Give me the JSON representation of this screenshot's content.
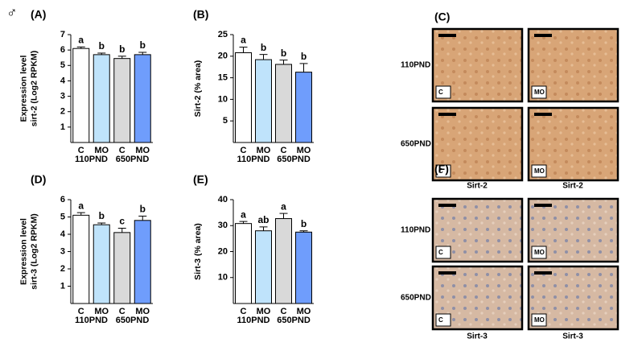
{
  "symbol": "♂",
  "chart_data": [
    {
      "type": "bar",
      "panel": "(A)",
      "ylabel": [
        "Expression level",
        "sirt-2 (Log2 RPKM)"
      ],
      "categories": [
        "C",
        "MO",
        "C",
        "MO"
      ],
      "groups": [
        "110PND",
        "650PND"
      ],
      "values": [
        6.1,
        5.7,
        5.45,
        5.7
      ],
      "errors": [
        0.1,
        0.1,
        0.15,
        0.15
      ],
      "letters": [
        "a",
        "b",
        "b",
        "b"
      ],
      "colors": [
        "#ffffff",
        "#bfe3fb",
        "#d9d9d9",
        "#6f9dfc"
      ],
      "ylim": [
        0,
        7
      ],
      "yticks": [
        1,
        2,
        3,
        4,
        5,
        6,
        7
      ]
    },
    {
      "type": "bar",
      "panel": "(B)",
      "ylabel": [
        "Sirt-2 (% area)"
      ],
      "categories": [
        "C",
        "MO",
        "C",
        "MO"
      ],
      "groups": [
        "110PND",
        "650PND"
      ],
      "values": [
        20.8,
        19.2,
        18.1,
        16.3
      ],
      "errors": [
        1.3,
        1.2,
        1.0,
        2.0
      ],
      "letters": [
        "a",
        "b",
        "b",
        "b"
      ],
      "colors": [
        "#ffffff",
        "#bfe3fb",
        "#d9d9d9",
        "#6f9dfc"
      ],
      "ylim": [
        0,
        25
      ],
      "yticks": [
        5,
        10,
        15,
        20,
        25
      ]
    },
    {
      "type": "bar",
      "panel": "(D)",
      "ylabel": [
        "Expression level",
        "sirt-3 (Log2 RPKM)"
      ],
      "categories": [
        "C",
        "MO",
        "C",
        "MO"
      ],
      "groups": [
        "110PND",
        "650PND"
      ],
      "values": [
        5.1,
        4.55,
        4.1,
        4.8
      ],
      "errors": [
        0.15,
        0.1,
        0.25,
        0.25
      ],
      "letters": [
        "a",
        "b",
        "c",
        "b"
      ],
      "colors": [
        "#ffffff",
        "#bfe3fb",
        "#d9d9d9",
        "#6f9dfc"
      ],
      "ylim": [
        0,
        6
      ],
      "yticks": [
        1,
        2,
        3,
        4,
        5,
        6
      ]
    },
    {
      "type": "bar",
      "panel": "(E)",
      "ylabel": [
        "Sirt-3 (% area)"
      ],
      "categories": [
        "C",
        "MO",
        "C",
        "MO"
      ],
      "groups": [
        "110PND",
        "650PND"
      ],
      "values": [
        30.8,
        28,
        32.7,
        27.5
      ],
      "errors": [
        0.8,
        1.5,
        2.0,
        0.5
      ],
      "letters": [
        "a",
        "ab",
        "a",
        "b"
      ],
      "colors": [
        "#ffffff",
        "#bfe3fb",
        "#d9d9d9",
        "#6f9dfc"
      ],
      "ylim": [
        0,
        40
      ],
      "yticks": [
        10,
        20,
        30,
        40
      ]
    }
  ],
  "micrographs": [
    {
      "panel": "(C)",
      "rows": [
        "110PND",
        "650PND"
      ],
      "insets": [
        "C",
        "MO"
      ],
      "captions": [
        "Sirt-2",
        "Sirt-2"
      ]
    },
    {
      "panel": "(F)",
      "rows": [
        "110PND",
        "650PND"
      ],
      "insets": [
        "C",
        "MO"
      ],
      "captions": [
        "Sirt-3",
        "Sirt-3"
      ]
    }
  ]
}
